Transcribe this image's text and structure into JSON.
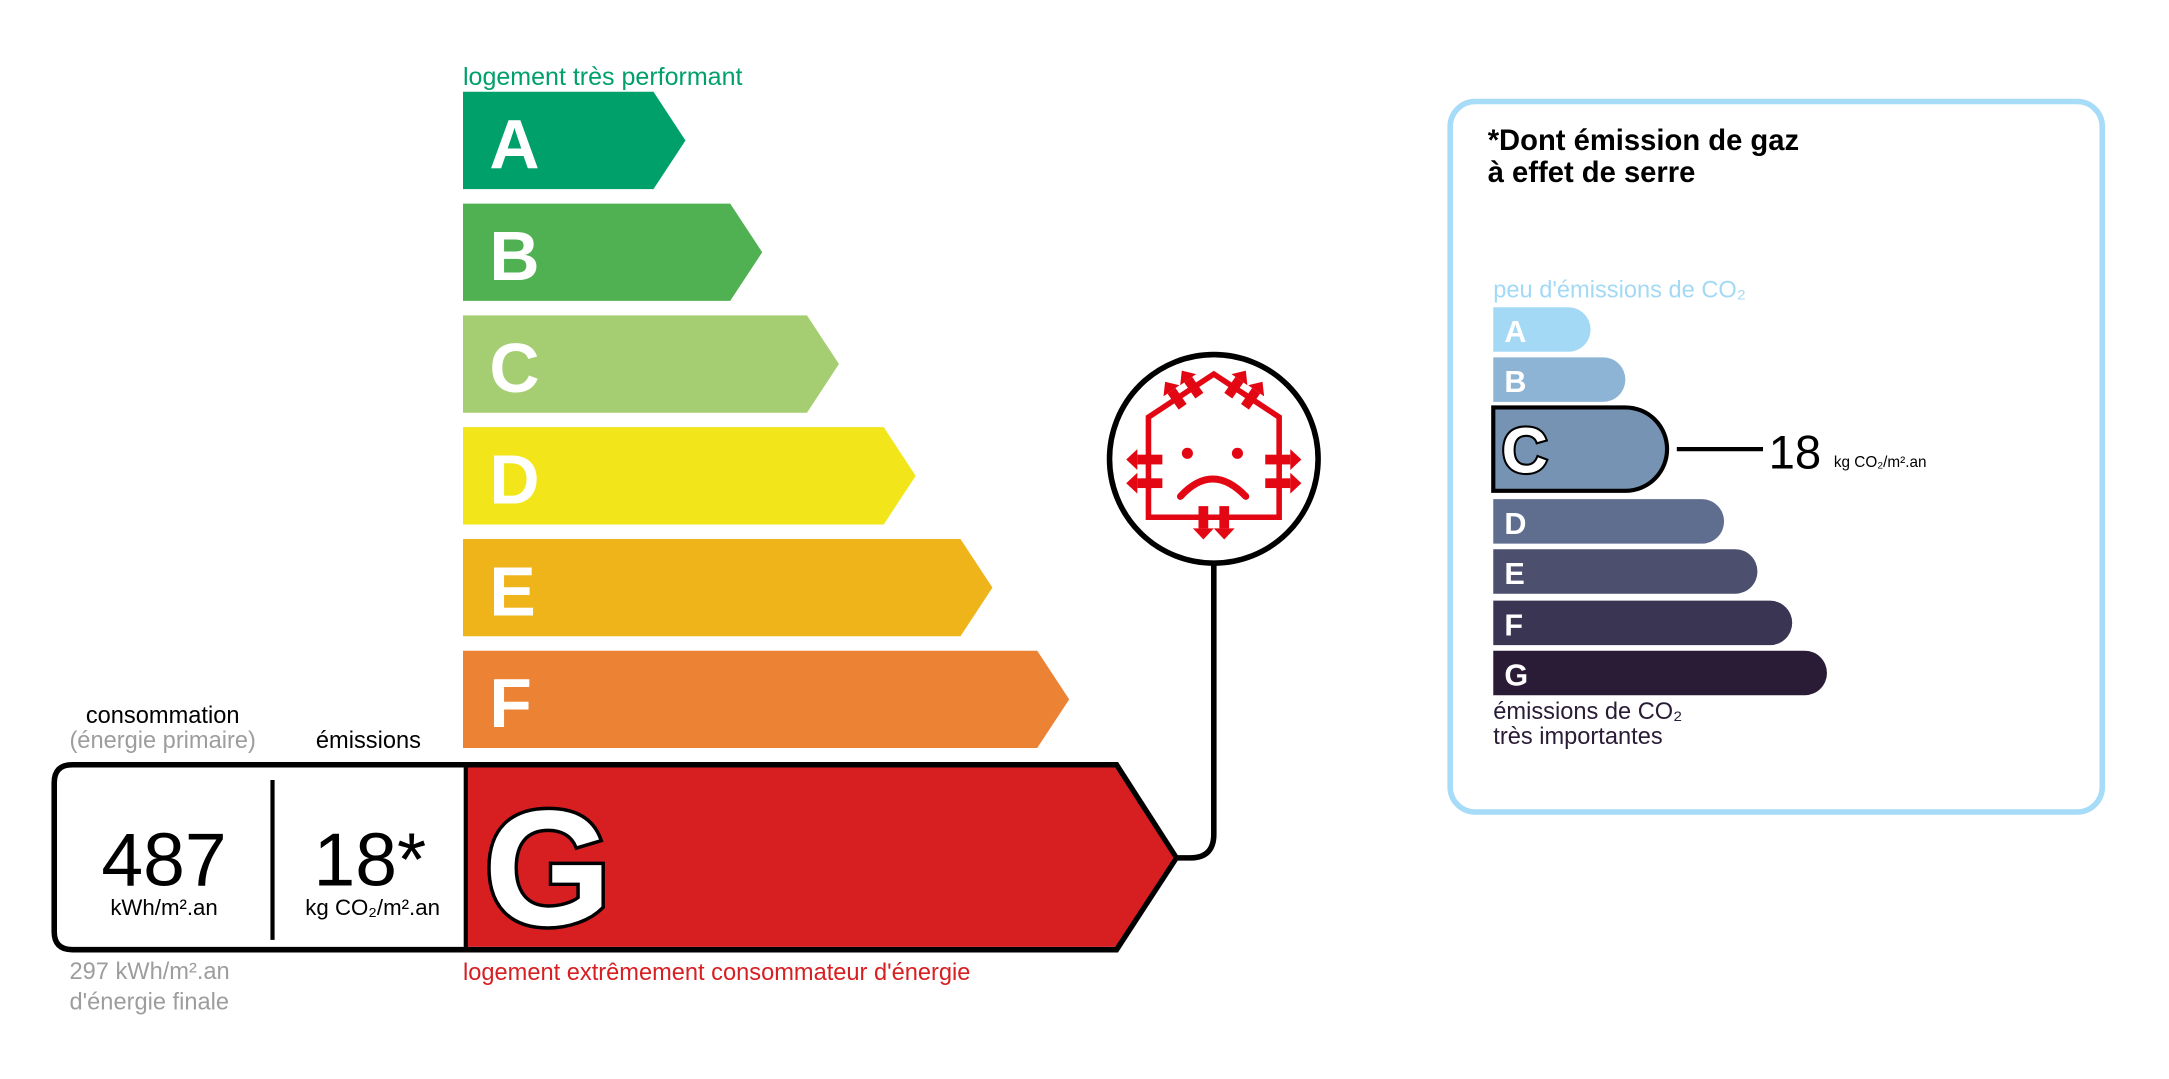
{
  "energy": {
    "top_label": "logement très performant",
    "bottom_label": "logement extrêmement consommateur d'énergie",
    "classes": [
      {
        "letter": "A",
        "color": "#00a06b"
      },
      {
        "letter": "B",
        "color": "#50b153"
      },
      {
        "letter": "C",
        "color": "#a5cd72"
      },
      {
        "letter": "D",
        "color": "#f2e61a"
      },
      {
        "letter": "E",
        "color": "#eeb41a"
      },
      {
        "letter": "F",
        "color": "#eb8234"
      },
      {
        "letter": "G",
        "color": "#d71f22"
      }
    ],
    "current_class": "G",
    "consumption_header": "consommation",
    "consumption_sub": "(énergie primaire)",
    "emissions_header": "émissions",
    "consumption_value": "487",
    "consumption_unit": "kWh/m².an",
    "emissions_value": "18*",
    "emissions_unit": "kg CO₂/m².an",
    "final_energy_value": "297 kWh/m².an",
    "final_energy_label": "d'énergie finale",
    "icon": "house-heat-loss-sad-icon"
  },
  "ghg": {
    "title_line1": "*Dont émission de gaz",
    "title_line2": "à effet de serre",
    "top_label": "peu d'émissions de CO₂",
    "bottom_label_line1": "émissions de CO₂",
    "bottom_label_line2": "très importantes",
    "classes": [
      {
        "letter": "A",
        "color": "#a3d9f5"
      },
      {
        "letter": "B",
        "color": "#8db4d4"
      },
      {
        "letter": "C",
        "color": "#7693b4"
      },
      {
        "letter": "D",
        "color": "#5f6d8f"
      },
      {
        "letter": "E",
        "color": "#4c4f6e"
      },
      {
        "letter": "F",
        "color": "#393553"
      },
      {
        "letter": "G",
        "color": "#2a1c36"
      }
    ],
    "current_class": "C",
    "value": "18",
    "unit": "kg CO₂/m².an",
    "border_color": "#a6dcf7"
  }
}
